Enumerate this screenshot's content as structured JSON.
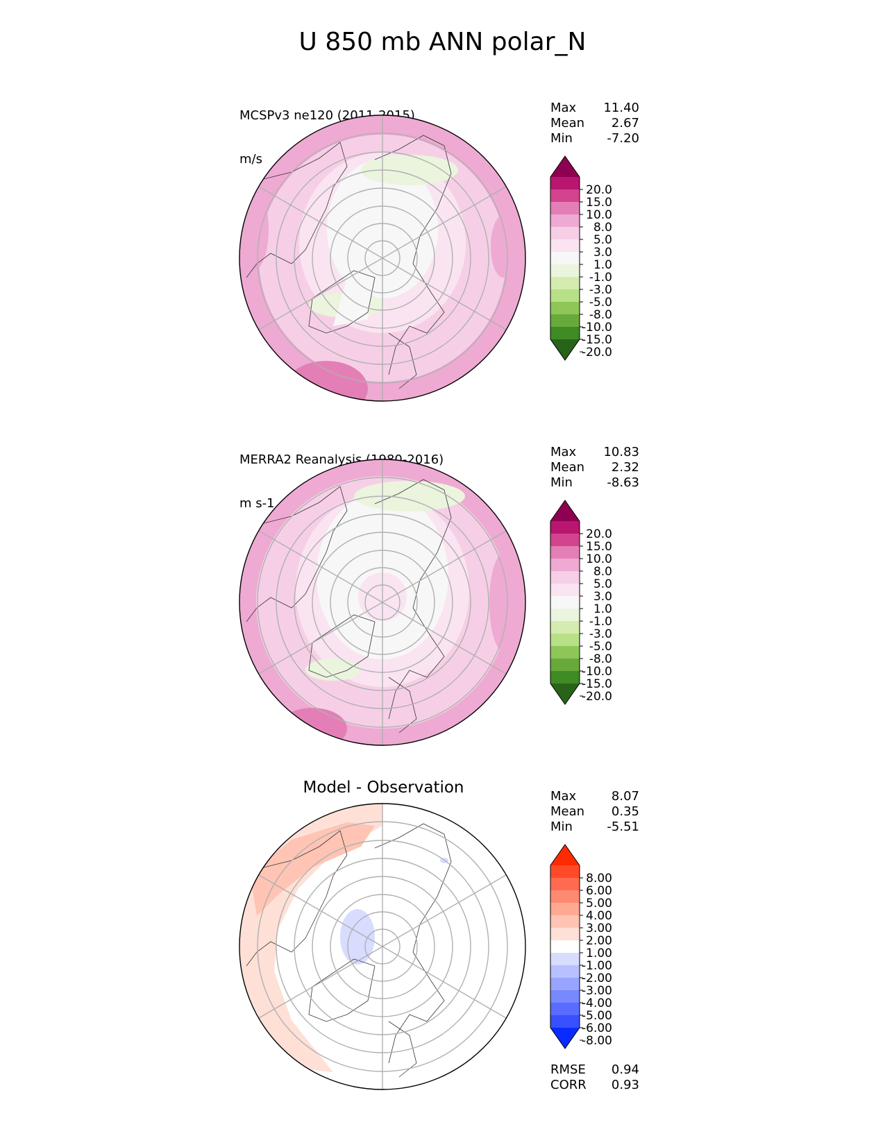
{
  "figure": {
    "title": "U 850 mb ANN polar_N"
  },
  "chart_data": [
    {
      "type": "heatmap",
      "projection": "north polar stereographic",
      "title_left": "MCSPv3 ne120 (2011-2015)",
      "units": "m/s",
      "stats": [
        {
          "label": "Max",
          "value": "11.40"
        },
        {
          "label": "Mean",
          "value": "2.67"
        },
        {
          "label": "Min",
          "value": "-7.20"
        }
      ],
      "colorbar": {
        "levels": [
          "20.0",
          "15.0",
          "10.0",
          "8.0",
          "5.0",
          "3.0",
          "1.0",
          "-1.0",
          "-3.0",
          "-5.0",
          "-8.0",
          "-10.0",
          "-15.0",
          "-20.0"
        ],
        "colors": [
          "#8e0152",
          "#b8166f",
          "#d3448e",
          "#e37fb6",
          "#eeaad2",
          "#f6cfe6",
          "#fae4f1",
          "#f7f7f7",
          "#ebf4dd",
          "#d5ecb0",
          "#b8e086",
          "#8fc658",
          "#68a93b",
          "#3f8b24",
          "#276419"
        ],
        "extend": "both"
      },
      "grid": true
    },
    {
      "type": "heatmap",
      "projection": "north polar stereographic",
      "title_left": "MERRA2 Reanalysis (1980-2016)",
      "units": "m s-1",
      "stats": [
        {
          "label": "Max",
          "value": "10.83"
        },
        {
          "label": "Mean",
          "value": "2.32"
        },
        {
          "label": "Min",
          "value": "-8.63"
        }
      ],
      "colorbar": {
        "levels": [
          "20.0",
          "15.0",
          "10.0",
          "8.0",
          "5.0",
          "3.0",
          "1.0",
          "-1.0",
          "-3.0",
          "-5.0",
          "-8.0",
          "-10.0",
          "-15.0",
          "-20.0"
        ],
        "colors": [
          "#8e0152",
          "#b8166f",
          "#d3448e",
          "#e37fb6",
          "#eeaad2",
          "#f6cfe6",
          "#fae4f1",
          "#f7f7f7",
          "#ebf4dd",
          "#d5ecb0",
          "#b8e086",
          "#8fc658",
          "#68a93b",
          "#3f8b24",
          "#276419"
        ],
        "extend": "both"
      },
      "grid": true
    },
    {
      "type": "heatmap",
      "projection": "north polar stereographic",
      "title_center": "Model - Observation",
      "stats": [
        {
          "label": "Max",
          "value": "8.07"
        },
        {
          "label": "Mean",
          "value": "0.35"
        },
        {
          "label": "Min",
          "value": "-5.51"
        }
      ],
      "extra_stats": [
        {
          "label": "RMSE",
          "value": "0.94"
        },
        {
          "label": "CORR",
          "value": "0.93"
        }
      ],
      "colorbar": {
        "levels": [
          "8.00",
          "6.00",
          "5.00",
          "4.00",
          "3.00",
          "2.00",
          "1.00",
          "-1.00",
          "-2.00",
          "-3.00",
          "-4.00",
          "-5.00",
          "-6.00",
          "-8.00"
        ],
        "colors": [
          "#ff2b00",
          "#ff4a2a",
          "#ff6a50",
          "#ff8a72",
          "#ffa993",
          "#ffc4b4",
          "#ffe0d6",
          "#ffffff",
          "#d8dcff",
          "#b8c0ff",
          "#98a4ff",
          "#7888ff",
          "#586cff",
          "#3850ff",
          "#0a2bff"
        ],
        "extend": "both"
      },
      "grid": true
    }
  ]
}
